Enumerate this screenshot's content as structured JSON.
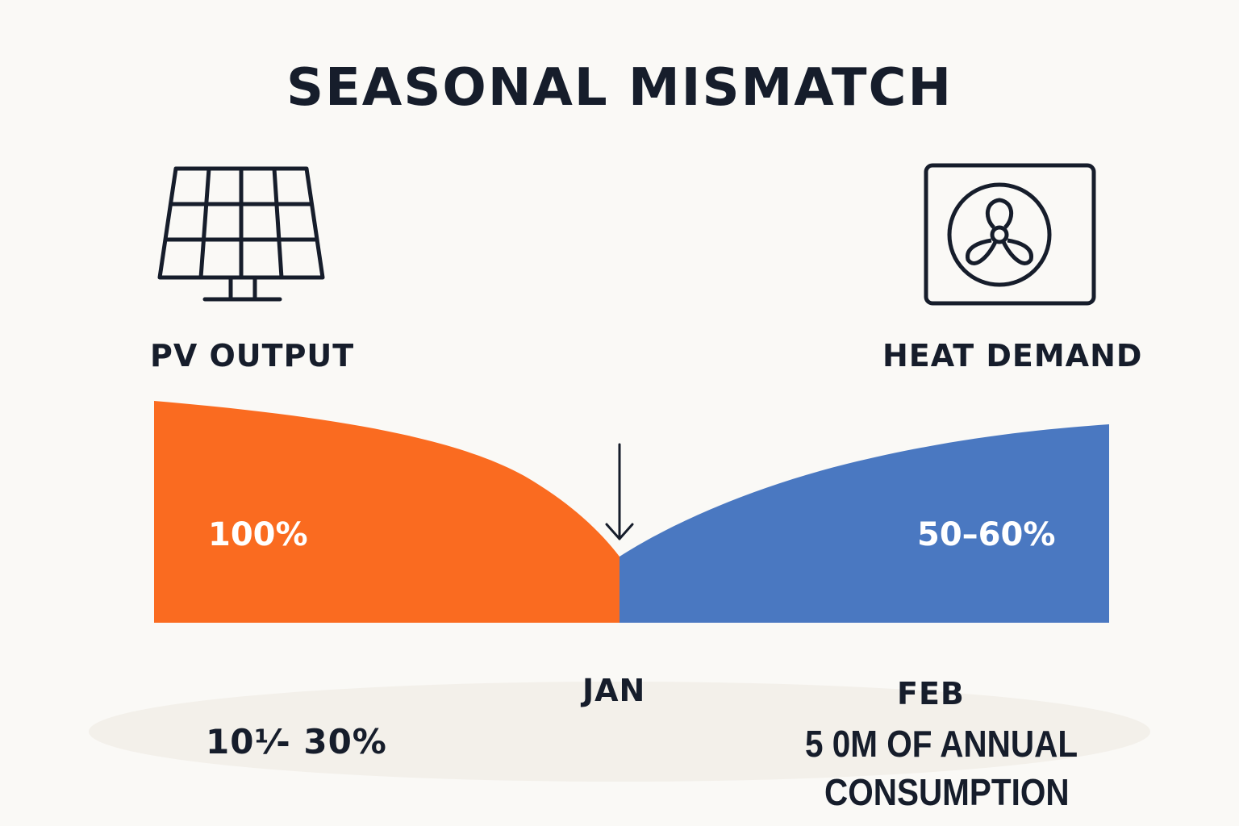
{
  "title": "SEASONAL MISMATCH",
  "pv_label": "PV OUTPUT",
  "heat_label": "HEAT DEMAND",
  "pv_value": "100%",
  "heat_value": "50–60%",
  "jan_label": "JAN",
  "feb_label": "FEB",
  "bottom_left": "10⅟- 30%",
  "bottom_right_line1": "5 0M OF ANNUAL",
  "bottom_right_line2": "CONSUMPTION",
  "colors": {
    "pv": "#fa6b20",
    "heat": "#4a78c1",
    "ink": "#161d2b",
    "background": "#faf9f6",
    "ellipse": "#f3f0ea"
  },
  "icons": {
    "left": "solar-panel-icon",
    "right": "fan-icon",
    "marker": "arrow-down-icon"
  }
}
